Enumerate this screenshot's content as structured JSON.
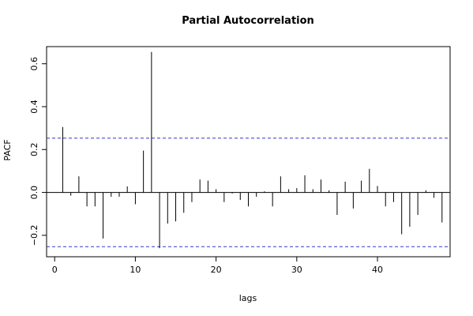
{
  "chart_data": {
    "type": "bar",
    "title": "Partial Autocorrelation",
    "xlabel": "lags",
    "ylabel": "PACF",
    "xlim": [
      -1,
      49
    ],
    "ylim": [
      -0.3,
      0.68
    ],
    "x_ticks": [
      0,
      10,
      20,
      30,
      40
    ],
    "y_ticks": [
      -0.2,
      0.0,
      0.2,
      0.4,
      0.6
    ],
    "x_tick_labels": [
      "0",
      "10",
      "20",
      "30",
      "40"
    ],
    "y_tick_labels": [
      "−0.2",
      "0.0",
      "0.2",
      "0.4",
      "0.6"
    ],
    "confidence_bounds": [
      0.253,
      -0.253
    ],
    "bound_color": "#3333cc",
    "grid": false,
    "lags": [
      1,
      2,
      3,
      4,
      5,
      6,
      7,
      8,
      9,
      10,
      11,
      12,
      13,
      14,
      15,
      16,
      17,
      18,
      19,
      20,
      21,
      22,
      23,
      24,
      25,
      26,
      27,
      28,
      29,
      30,
      31,
      32,
      33,
      34,
      35,
      36,
      37,
      38,
      39,
      40,
      41,
      42,
      43,
      44,
      45,
      46,
      47,
      48
    ],
    "values": [
      0.305,
      -0.015,
      0.075,
      -0.065,
      -0.065,
      -0.215,
      -0.02,
      -0.02,
      0.028,
      -0.055,
      0.195,
      0.655,
      -0.26,
      -0.145,
      -0.135,
      -0.095,
      -0.045,
      0.06,
      0.055,
      0.015,
      -0.045,
      -0.005,
      -0.035,
      -0.065,
      -0.02,
      0.005,
      -0.065,
      0.075,
      0.015,
      0.02,
      0.08,
      0.015,
      0.06,
      0.01,
      -0.105,
      0.05,
      -0.075,
      0.055,
      0.11,
      0.03,
      -0.065,
      -0.045,
      -0.195,
      -0.16,
      -0.105,
      0.01,
      -0.025,
      -0.14
    ]
  }
}
